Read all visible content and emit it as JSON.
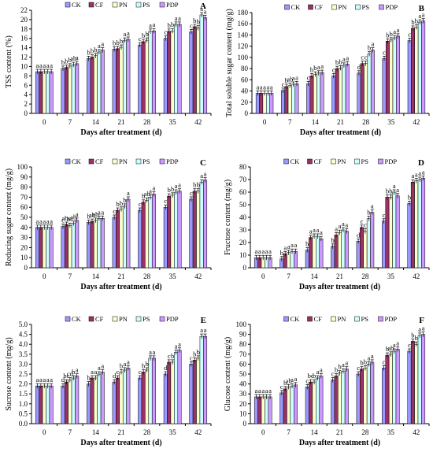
{
  "legend": [
    "CK",
    "CF",
    "PN",
    "PS",
    "PDP"
  ],
  "colors": [
    "#9999ff",
    "#993366",
    "#ffffcc",
    "#ccffff",
    "#cc99ff"
  ],
  "chart_data": [
    {
      "type": "bar",
      "panel": "A",
      "categories": [
        "0",
        "7",
        "14",
        "21",
        "28",
        "35",
        "42"
      ],
      "xlabel": "Days after treatment (d)",
      "ylabel": "TSS content (%)",
      "ylim": [
        0,
        22
      ],
      "yticks": [
        0,
        2,
        4,
        6,
        8,
        10,
        12,
        14,
        16,
        18,
        20,
        22
      ],
      "legend_position": "top",
      "grid": false,
      "series": [
        {
          "name": "CK",
          "values": [
            8.9,
            9.6,
            11.7,
            13.7,
            14.6,
            16.0,
            17.4
          ]
        },
        {
          "name": "CF",
          "values": [
            8.9,
            9.8,
            12.0,
            13.8,
            15.3,
            17.5,
            18.5
          ]
        },
        {
          "name": "PN",
          "values": [
            8.9,
            10.1,
            12.3,
            14.1,
            15.6,
            17.6,
            18.2
          ]
        },
        {
          "name": "PS",
          "values": [
            8.9,
            10.4,
            13.1,
            15.6,
            17.5,
            19.0,
            21.0
          ]
        },
        {
          "name": "PDP",
          "values": [
            8.9,
            10.6,
            13.5,
            15.8,
            17.6,
            19.0,
            20.4
          ]
        }
      ],
      "letters": [
        [
          "a",
          "a",
          "a",
          "a",
          "a"
        ],
        [
          "b",
          "b",
          "b",
          "ab",
          "a"
        ],
        [
          "b",
          "b",
          "b",
          "a",
          "a"
        ],
        [
          "b",
          "b",
          "b",
          "a",
          "a"
        ],
        [
          "c",
          "b",
          "b",
          "a",
          "a"
        ],
        [
          "c",
          "b",
          "b",
          "a",
          "a"
        ],
        [
          "c",
          "b",
          "b",
          "a",
          "a"
        ]
      ]
    },
    {
      "type": "bar",
      "panel": "B",
      "categories": [
        "0",
        "7",
        "14",
        "21",
        "28",
        "35",
        "42"
      ],
      "xlabel": "Days after treatment (d)",
      "ylabel": "Total soluble sugar content (mg/g)",
      "ylim": [
        0,
        180
      ],
      "yticks": [
        0,
        20,
        40,
        60,
        80,
        100,
        120,
        140,
        160,
        180
      ],
      "legend_position": "top",
      "grid": false,
      "series": [
        {
          "name": "CK",
          "values": [
            36,
            41,
            53,
            67,
            72,
            98,
            130
          ]
        },
        {
          "name": "CF",
          "values": [
            36,
            48,
            67,
            80,
            89,
            129,
            152
          ]
        },
        {
          "name": "PN",
          "values": [
            36,
            50,
            70,
            81,
            89,
            131,
            154
          ]
        },
        {
          "name": "PS",
          "values": [
            36,
            52,
            72,
            86,
            106,
            135,
            163
          ]
        },
        {
          "name": "PDP",
          "values": [
            36,
            53,
            73,
            88,
            113,
            138,
            165
          ]
        }
      ],
      "letters": [
        [
          "a",
          "a",
          "a",
          "a",
          "a"
        ],
        [
          "c",
          "b",
          "ab",
          "a",
          "a"
        ],
        [
          "c",
          "b",
          "b",
          "a",
          "a"
        ],
        [
          "c",
          "b",
          "b",
          "a",
          "a"
        ],
        [
          "d",
          "c",
          "c",
          "b",
          "a"
        ],
        [
          "c",
          "b",
          "b",
          "a",
          "a"
        ],
        [
          "c",
          "b",
          "b",
          "a",
          "a"
        ]
      ]
    },
    {
      "type": "bar",
      "panel": "C",
      "categories": [
        "0",
        "7",
        "14",
        "21",
        "28",
        "35",
        "42"
      ],
      "xlabel": "Days after treatment (d)",
      "ylabel": "Reducing sugar content (mg/g)",
      "ylim": [
        0,
        100
      ],
      "yticks": [
        0,
        10,
        20,
        30,
        40,
        50,
        60,
        70,
        80,
        90,
        100
      ],
      "legend_position": "top",
      "grid": false,
      "series": [
        {
          "name": "CK",
          "values": [
            40,
            41,
            45,
            50,
            57,
            60,
            68
          ]
        },
        {
          "name": "CF",
          "values": [
            40,
            43,
            46,
            57,
            65,
            71,
            76
          ]
        },
        {
          "name": "PN",
          "values": [
            40,
            42,
            47,
            58,
            67,
            72,
            76
          ]
        },
        {
          "name": "PS",
          "values": [
            40,
            44,
            49,
            61,
            70,
            75,
            85
          ]
        },
        {
          "name": "PDP",
          "values": [
            40,
            47,
            49,
            68,
            73,
            76,
            87
          ]
        }
      ],
      "letters": [
        [
          "a",
          "a",
          "a",
          "a",
          "a"
        ],
        [
          "c",
          "abc",
          "bc",
          "ab",
          "a"
        ],
        [
          "b",
          "ab",
          "ab",
          "a",
          "a"
        ],
        [
          "c",
          "b",
          "b",
          "b",
          "a"
        ],
        [
          "c",
          "b",
          "ab",
          "a",
          "a"
        ],
        [
          "c",
          "b",
          "b",
          "a",
          "a"
        ],
        [
          "c",
          "b",
          "b",
          "a",
          "a"
        ]
      ]
    },
    {
      "type": "bar",
      "panel": "D",
      "categories": [
        "0",
        "7",
        "14",
        "21",
        "28",
        "35",
        "42"
      ],
      "xlabel": "Days after treatment (d)",
      "ylabel": "Fructose content (mg/g)",
      "ylim": [
        0,
        80
      ],
      "yticks": [
        0,
        10,
        20,
        30,
        40,
        50,
        60,
        70,
        80
      ],
      "legend_position": "top",
      "grid": false,
      "series": [
        {
          "name": "CK",
          "values": [
            8,
            7,
            14,
            17,
            21,
            37,
            51
          ]
        },
        {
          "name": "CF",
          "values": [
            8,
            11,
            24,
            26,
            32,
            56,
            68
          ]
        },
        {
          "name": "PN",
          "values": [
            8,
            12,
            25,
            28,
            29,
            56,
            69
          ]
        },
        {
          "name": "PS",
          "values": [
            8,
            13,
            25,
            30,
            39,
            60,
            70
          ]
        },
        {
          "name": "PDP",
          "values": [
            8,
            13,
            23,
            29,
            44,
            57,
            71
          ]
        }
      ],
      "letters": [
        [
          "a",
          "a",
          "a",
          "a",
          "a"
        ],
        [
          "b",
          "a",
          "a",
          "a",
          "a"
        ],
        [
          "b",
          "a",
          "a",
          "a",
          "a"
        ],
        [
          "b",
          "a",
          "a",
          "a",
          "a"
        ],
        [
          "d",
          "c",
          "c",
          "b",
          "a"
        ],
        [
          "c",
          "b",
          "b",
          "a",
          "a"
        ],
        [
          "b",
          "a",
          "a",
          "a",
          "a"
        ]
      ]
    },
    {
      "type": "bar",
      "panel": "E",
      "categories": [
        "0",
        "7",
        "14",
        "21",
        "28",
        "35",
        "42"
      ],
      "xlabel": "Days after treatment (d)",
      "ylabel": "Sucrose content (mg/g)",
      "ylim": [
        0,
        5
      ],
      "yticks": [
        0,
        0.5,
        1.0,
        1.5,
        2.0,
        2.5,
        3.0,
        3.5,
        4.0,
        4.5,
        5.0
      ],
      "legend_position": "top",
      "grid": false,
      "series": [
        {
          "name": "CK",
          "values": [
            1.9,
            1.9,
            2.0,
            2.1,
            2.3,
            2.5,
            3.0
          ]
        },
        {
          "name": "CF",
          "values": [
            1.9,
            2.1,
            2.3,
            2.3,
            2.6,
            3.1,
            3.2
          ]
        },
        {
          "name": "PN",
          "values": [
            1.9,
            2.2,
            2.3,
            2.6,
            2.7,
            3.1,
            3.3
          ]
        },
        {
          "name": "PS",
          "values": [
            1.9,
            2.3,
            2.5,
            2.7,
            3.3,
            3.6,
            4.4
          ]
        },
        {
          "name": "PDP",
          "values": [
            1.9,
            2.4,
            2.6,
            2.8,
            3.3,
            3.7,
            4.4
          ]
        }
      ],
      "letters": [
        [
          "a",
          "a",
          "a",
          "a",
          "a"
        ],
        [
          "d",
          "bc",
          "cd",
          "b",
          "a"
        ],
        [
          "b",
          "a",
          "a",
          "a",
          "a"
        ],
        [
          "d",
          "c",
          "b",
          "a",
          "a"
        ],
        [
          "c",
          "b",
          "b",
          "a",
          "a"
        ],
        [
          "d",
          "c",
          "b",
          "a",
          "a"
        ],
        [
          "c",
          "b",
          "b",
          "a",
          "a"
        ]
      ]
    },
    {
      "type": "bar",
      "panel": "F",
      "categories": [
        "0",
        "7",
        "14",
        "21",
        "28",
        "35",
        "42"
      ],
      "xlabel": "Days after treatment (d)",
      "ylabel": "Glucose content (mg/g)",
      "ylim": [
        0,
        100
      ],
      "yticks": [
        0,
        10,
        20,
        30,
        40,
        50,
        60,
        70,
        80,
        90,
        100
      ],
      "legend_position": "top",
      "grid": false,
      "series": [
        {
          "name": "CK",
          "values": [
            27,
            31,
            37,
            44,
            50,
            56,
            73
          ]
        },
        {
          "name": "CF",
          "values": [
            27,
            35,
            42,
            48,
            55,
            69,
            83
          ]
        },
        {
          "name": "PN",
          "values": [
            27,
            37,
            42,
            51,
            56,
            70,
            80
          ]
        },
        {
          "name": "PS",
          "values": [
            27,
            38,
            46,
            53,
            60,
            73,
            89
          ]
        },
        {
          "name": "PDP",
          "values": [
            27,
            39,
            48,
            55,
            62,
            75,
            90
          ]
        }
      ],
      "letters": [
        [
          "a",
          "a",
          "a",
          "a",
          "a"
        ],
        [
          "c",
          "b",
          "ab",
          "a",
          "a"
        ],
        [
          "c",
          "bc",
          "b",
          "a",
          "a"
        ],
        [
          "c",
          "b",
          "b",
          "a",
          "a"
        ],
        [
          "c",
          "b",
          "b",
          "a",
          "a"
        ],
        [
          "c",
          "b",
          "ab",
          "a",
          "a"
        ],
        [
          "c",
          "b",
          "b",
          "a",
          "a"
        ]
      ]
    }
  ]
}
